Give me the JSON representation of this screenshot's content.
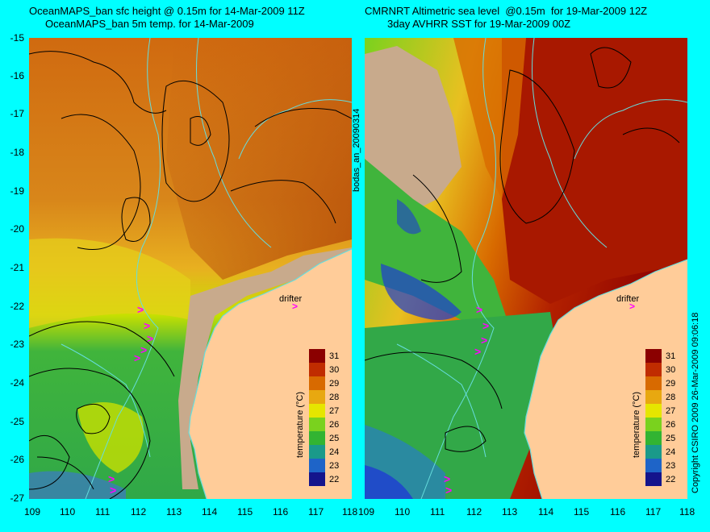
{
  "left_panel": {
    "title_line1": "OceanMAPS_ban sfc height @ 0.15m for 14-Mar-2009 11Z",
    "title_line2": "OceanMAPS_ban 5m temp. for 14-Mar-2009"
  },
  "right_panel": {
    "title_line1": "CMRNRT Altimetric sea level  @0.15m  for 19-Mar-2009 12Z",
    "title_line2": "3day AVHRR SST for 19-Mar-2009 00Z"
  },
  "y_ticks": [
    "-15",
    "-16",
    "-17",
    "-18",
    "-19",
    "-20",
    "-21",
    "-22",
    "-23",
    "-24",
    "-25",
    "-26",
    "-27"
  ],
  "x_ticks": [
    "109",
    "110",
    "111",
    "112",
    "113",
    "114",
    "115",
    "116",
    "117",
    "118"
  ],
  "analysis_id": "bodas_an_20090314",
  "copyright": "Copyright CSIRO 2009   26-Mar-2009 09:06:18",
  "drifter_label": "drifter",
  "drifter_arrow": ">",
  "colorbar": {
    "label": "temperature (°C)",
    "ticks": [
      "31",
      "30",
      "29",
      "28",
      "27",
      "26",
      "25",
      "24",
      "23",
      "22"
    ],
    "colors": [
      "#8b0000",
      "#b22000",
      "#cc4400",
      "#d86a00",
      "#e89a10",
      "#f2d000",
      "#c8e600",
      "#7ad21e",
      "#32b432",
      "#1a9a5a",
      "#1a8a8a",
      "#1e64c8",
      "#1e3cd2",
      "#14148c"
    ]
  },
  "map_colors": {
    "land": "#ffcc99",
    "no_data": "#c8aa8c",
    "coastline": "#66dddd",
    "contour": "#000000",
    "drifter": "#ff00ff"
  }
}
